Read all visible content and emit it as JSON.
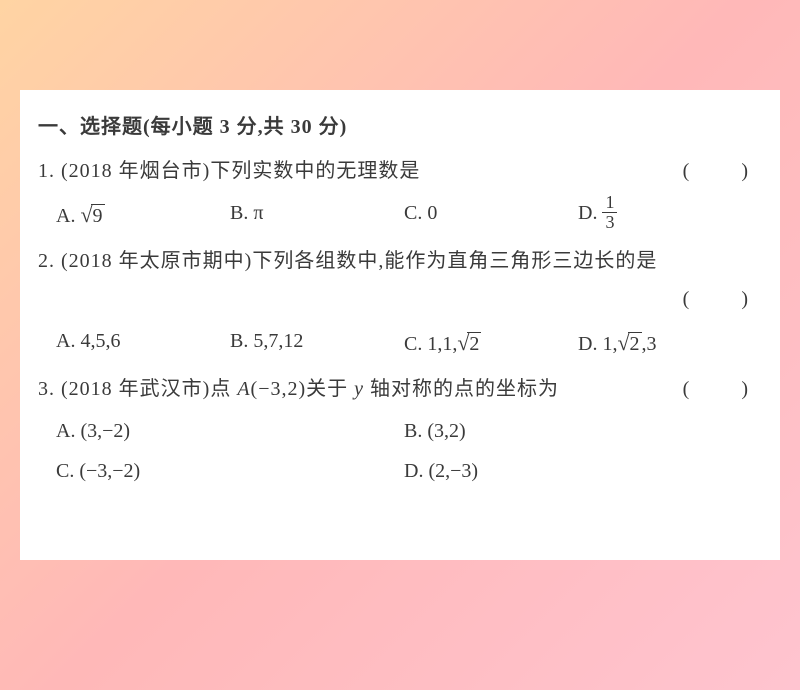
{
  "background_gradient": [
    "#ffd4a3",
    "#ffb8b8",
    "#ffc4d0"
  ],
  "page_bg": "#ffffff",
  "text_color": "#3a3a3a",
  "base_fontsize": 20,
  "section": {
    "title": "一、选择题(每小题 3 分,共 30 分)"
  },
  "q1": {
    "stem": "1. (2018 年烟台市)下列实数中的无理数是",
    "paren": "(　　)",
    "optA_prefix": "A. ",
    "optA_radicand": "9",
    "optB": "B. π",
    "optC": "C. 0",
    "optD_prefix": "D. ",
    "optD_num": "1",
    "optD_den": "3"
  },
  "q2": {
    "stem": "2. (2018 年太原市期中)下列各组数中,能作为直角三角形三边长的是",
    "paren": "(　　)",
    "optA": "A. 4,5,6",
    "optB": "B. 5,7,12",
    "optC_prefix": "C. 1,1,",
    "optC_radicand": "2",
    "optD_prefix": "D. 1,",
    "optD_radicand": "2",
    "optD_suffix": ",3"
  },
  "q3": {
    "stem_before": "3. (2018 年武汉市)点 ",
    "stem_point": "A",
    "stem_mid": "(−3,2)关于 ",
    "stem_axis": "y",
    "stem_after": " 轴对称的点的坐标为",
    "paren": "(　　)",
    "optA": "A. (3,−2)",
    "optB": "B. (3,2)",
    "optC": "C. (−3,−2)",
    "optD": "D. (2,−3)"
  }
}
